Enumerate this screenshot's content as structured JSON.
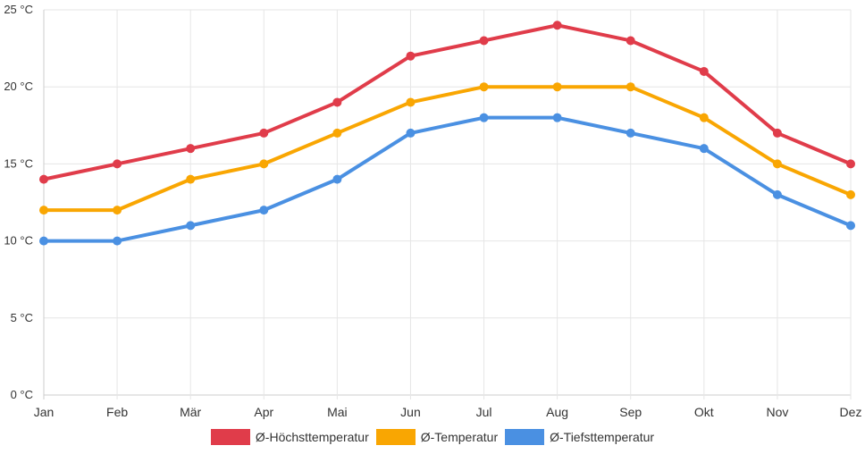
{
  "chart_data": {
    "type": "line",
    "categories": [
      "Jan",
      "Feb",
      "Mär",
      "Apr",
      "Mai",
      "Jun",
      "Jul",
      "Aug",
      "Sep",
      "Okt",
      "Nov",
      "Dez"
    ],
    "series": [
      {
        "name": "Ø-Höchsttemperatur",
        "color": "#e03c4a",
        "values": [
          14,
          15,
          16,
          17,
          19,
          22,
          23,
          24,
          23,
          21,
          17,
          15
        ]
      },
      {
        "name": "Ø-Temperatur",
        "color": "#f9a602",
        "values": [
          12,
          12,
          14,
          15,
          17,
          19,
          20,
          20,
          20,
          18,
          15,
          13
        ]
      },
      {
        "name": "Ø-Tiefsttemperatur",
        "color": "#4a90e2",
        "values": [
          10,
          10,
          11,
          12,
          14,
          17,
          18,
          18,
          17,
          16,
          13,
          11
        ]
      }
    ],
    "y_ticks": [
      "0 °C",
      "5 °C",
      "10 °C",
      "15 °C",
      "20 °C",
      "25 °C"
    ],
    "ylim": [
      0,
      25
    ],
    "grid": true,
    "legend": "bottom"
  }
}
